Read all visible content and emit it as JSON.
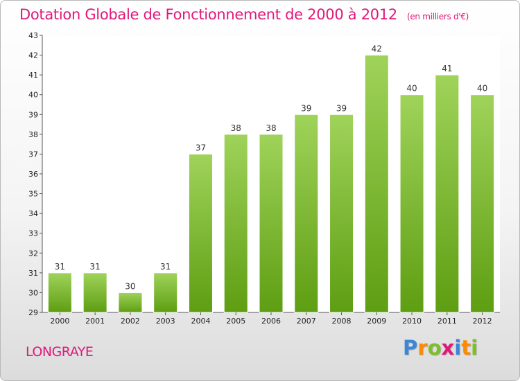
{
  "title": "Dotation Globale de Fonctionnement de 2000 à 2012",
  "subtitle": "(en milliers d'€)",
  "city": "LONGRAYE",
  "logo": {
    "letters": [
      "P",
      "r",
      "o",
      "x",
      "i",
      "t",
      "i"
    ],
    "colors": [
      "#3a86d8",
      "#ff8a00",
      "#7cc023",
      "#e0187a",
      "#3a86d8",
      "#ff8a00",
      "#7cc023"
    ]
  },
  "colors": {
    "bar_top": "#9fd35a",
    "bar_bottom": "#5e9e12",
    "title": "#e0187a"
  },
  "chart_data": {
    "type": "bar",
    "categories": [
      "2000",
      "2001",
      "2002",
      "2003",
      "2004",
      "2005",
      "2006",
      "2007",
      "2008",
      "2009",
      "2010",
      "2011",
      "2012"
    ],
    "values": [
      31,
      31,
      30,
      31,
      37,
      38,
      38,
      39,
      39,
      42,
      40,
      41,
      40
    ],
    "ylim": [
      29,
      43
    ],
    "yticks": [
      29,
      30,
      31,
      32,
      33,
      34,
      35,
      36,
      37,
      38,
      39,
      40,
      41,
      42,
      43
    ],
    "grid": false,
    "data_labels": true
  }
}
